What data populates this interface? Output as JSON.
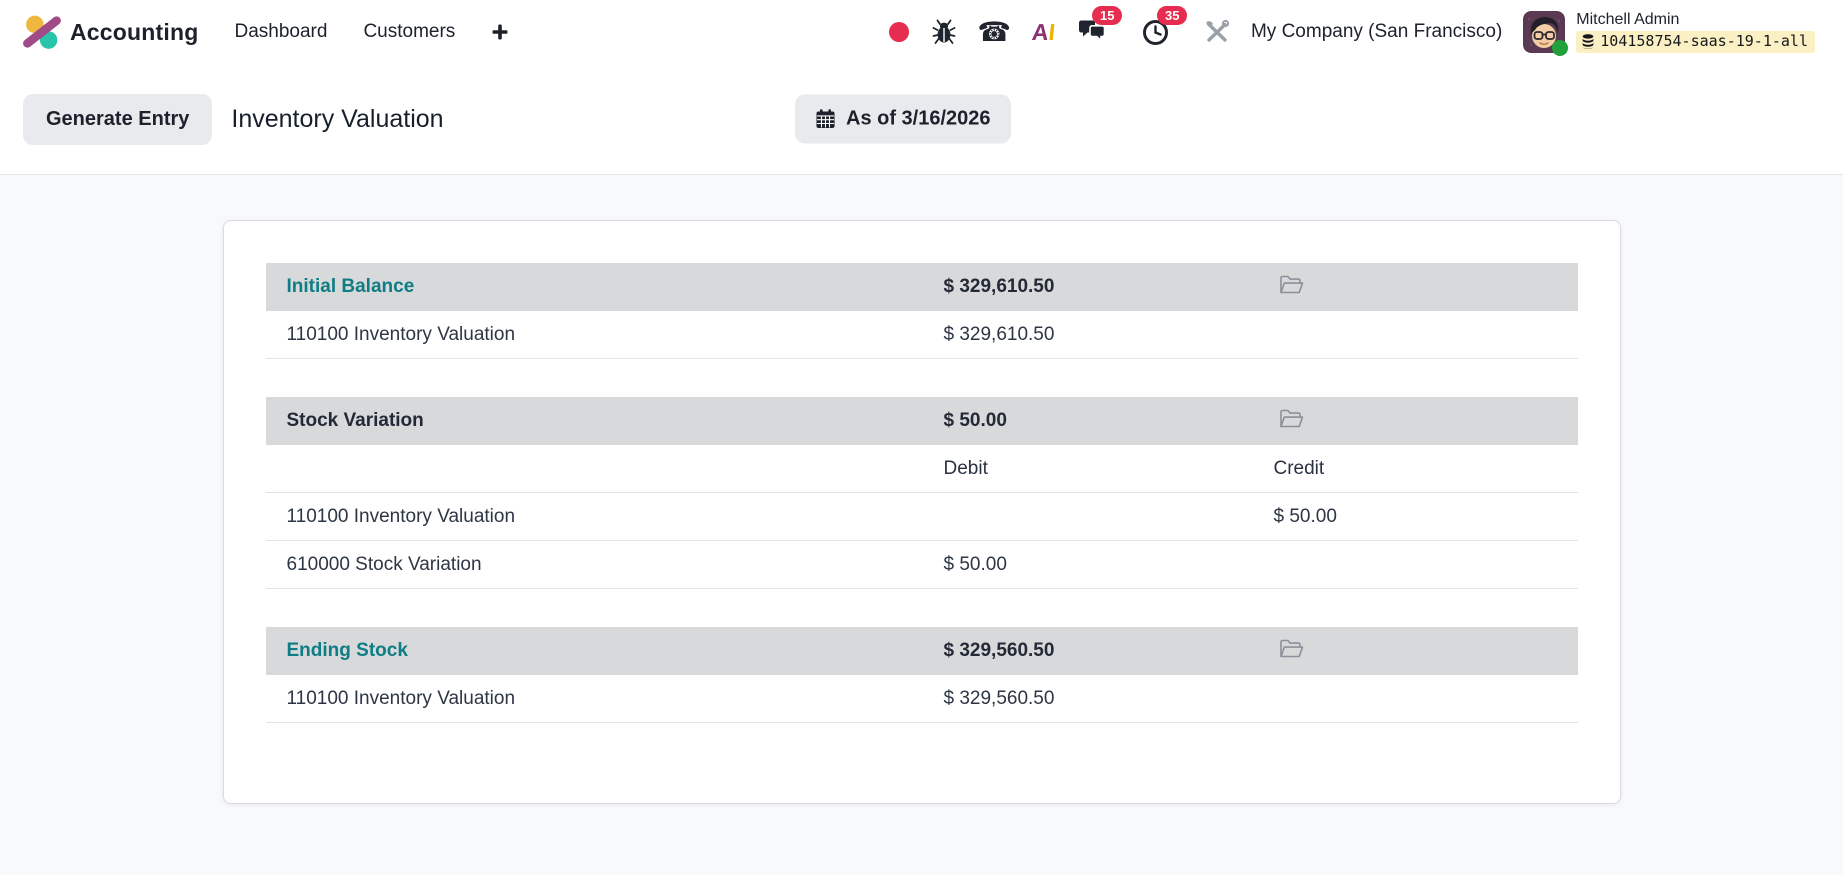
{
  "app": {
    "name": "Accounting"
  },
  "navbar": {
    "menu_items": [
      {
        "label": "Dashboard"
      },
      {
        "label": "Customers"
      }
    ],
    "systray": {
      "messages_badge": "15",
      "activities_badge": "35",
      "company": "My Company (San Francisco)",
      "user_name": "Mitchell Admin",
      "database": "104158754-saas-19-1-all",
      "ai_letter_a": "A",
      "ai_letter_i": "I"
    }
  },
  "control_panel": {
    "generate_button": "Generate Entry",
    "title": "Inventory Valuation",
    "date_filter": "As of 3/16/2026"
  },
  "valuation": {
    "column_headers": {
      "debit": "Debit",
      "credit": "Credit"
    },
    "sections": [
      {
        "title": "Initial Balance",
        "style": "teal",
        "amount": "$ 329,610.50",
        "show_columns": false,
        "rows": [
          {
            "account": "110100 Inventory Valuation",
            "debit": "$ 329,610.50",
            "credit": ""
          }
        ]
      },
      {
        "title": "Stock Variation",
        "style": "dark",
        "amount": "$ 50.00",
        "show_columns": true,
        "rows": [
          {
            "account": "110100 Inventory Valuation",
            "debit": "",
            "credit": "$ 50.00"
          },
          {
            "account": "610000 Stock Variation",
            "debit": "$ 50.00",
            "credit": ""
          }
        ]
      },
      {
        "title": "Ending Stock",
        "style": "teal",
        "amount": "$ 329,560.50",
        "show_columns": false,
        "rows": [
          {
            "account": "110100 Inventory Valuation",
            "debit": "$ 329,560.50",
            "credit": ""
          }
        ]
      }
    ]
  },
  "colors": {
    "accent_teal": "#0e7d84",
    "badge_red": "#e62c4f",
    "status_green": "#21a03c",
    "db_highlight_yellow": "#faf0c4",
    "section_band_gray": "#d8d9db",
    "logo_yellow": "#efb73e",
    "logo_teal": "#29c4a9",
    "logo_magenta": "#a04b87"
  }
}
